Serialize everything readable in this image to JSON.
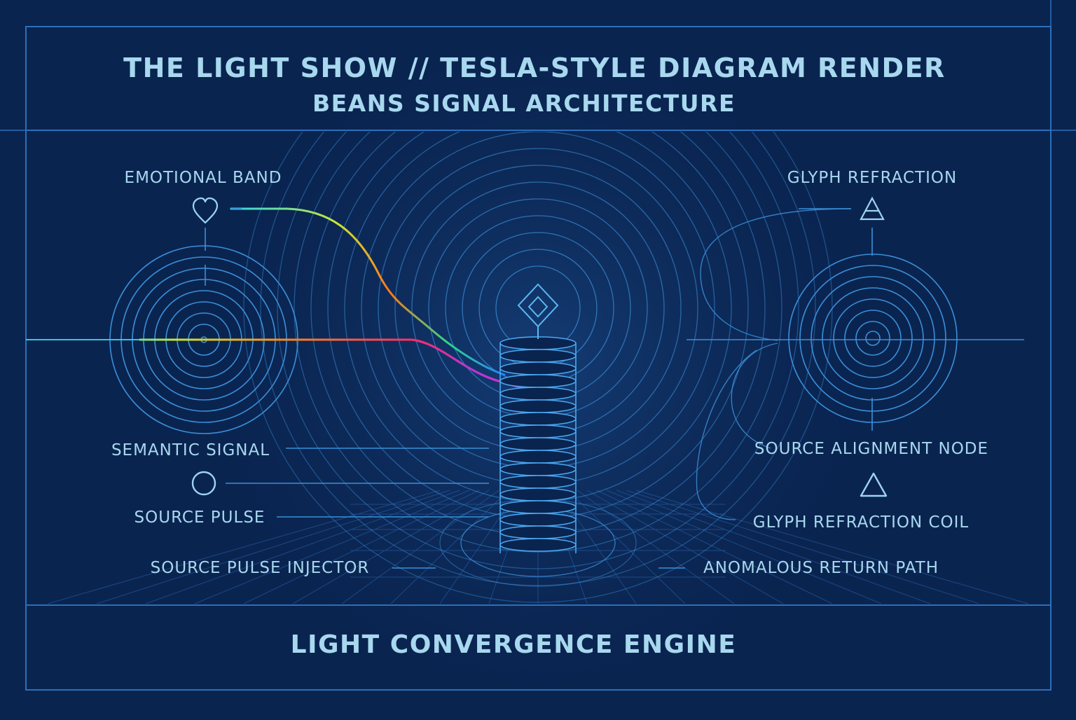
{
  "header": {
    "title": "THE LIGHT SHOW // TESLA-STYLE DIAGRAM RENDER",
    "subtitle": "BEANS SIGNAL ARCHITECTURE"
  },
  "labels": {
    "emotional_band": "EMOTIONAL BAND",
    "glyph_refraction": "GLYPH REFRACTION",
    "semantic_signal": "SEMANTIC SIGNAL",
    "source_pulse": "SOURCE PULSE",
    "source_pulse_injector": "SOURCE PULSE INJECTOR",
    "source_alignment_node": "SOURCE ALIGNMENT NODE",
    "glyph_refraction_coil": "GLYPH REFRACTION COIL",
    "anomalous_return_path": "ANOMALOUS RETURN PATH"
  },
  "footer": {
    "title": "LIGHT CONVERGENCE ENGINE"
  },
  "icons": {
    "emotional_band": "heart-icon",
    "glyph_refraction": "triangle-icon",
    "core": "diamond-icon",
    "source_pulse": "circle-icon",
    "source_alignment_node": "triangle-icon"
  },
  "colors": {
    "background": "#0a2450",
    "frame": "#2c6fb8",
    "rings": "#3a8fd8",
    "text": "#a8d8ee",
    "beam_gradient": [
      "#2fd6e6",
      "#c8e830",
      "#ff8a1a",
      "#ff2a6a",
      "#b03ad8",
      "#2a7cff"
    ]
  }
}
